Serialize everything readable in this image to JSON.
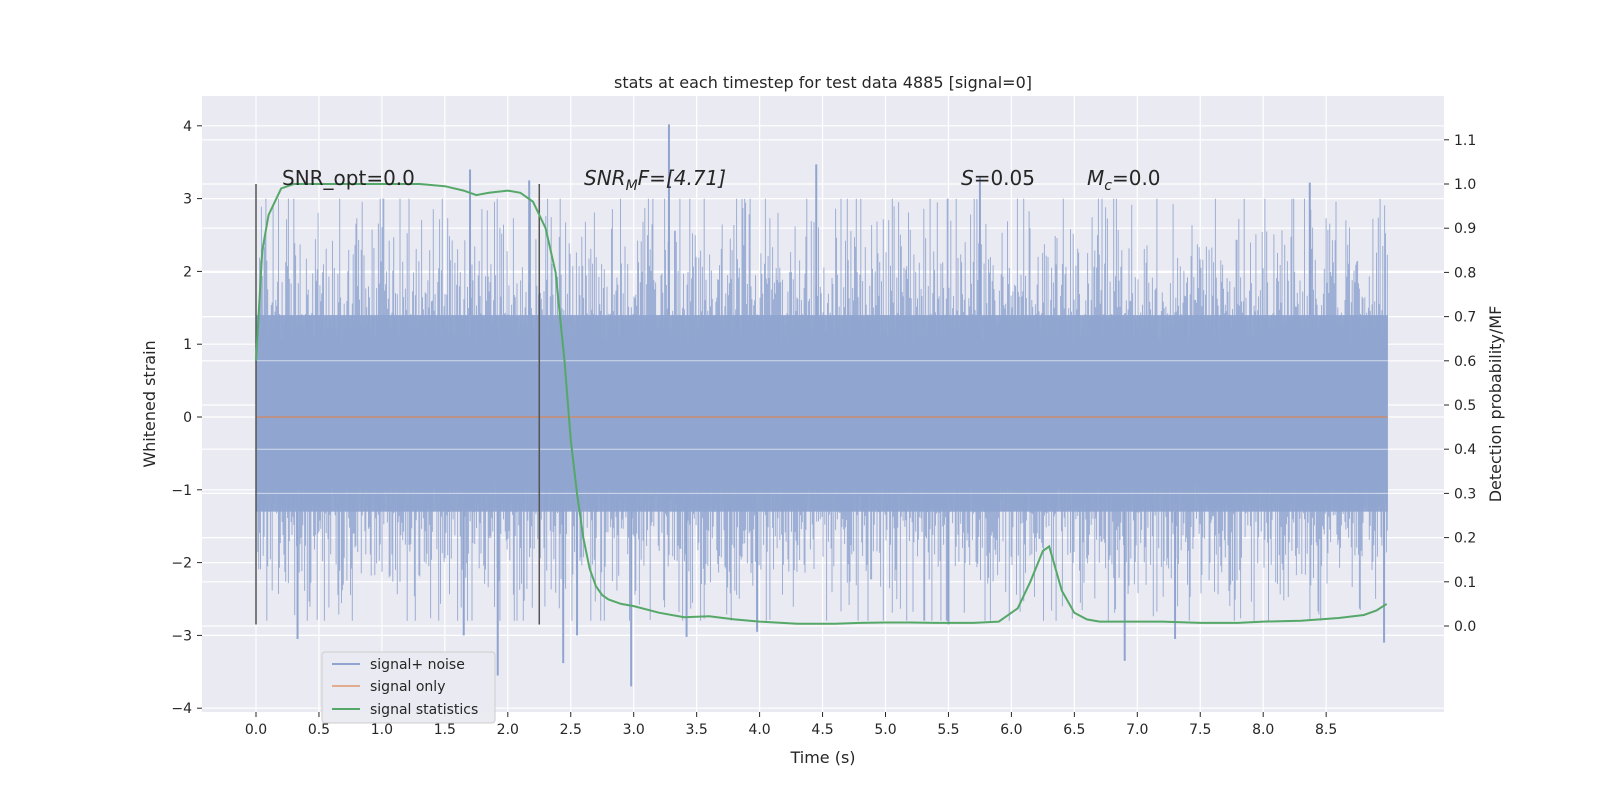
{
  "chart_data": {
    "type": "line",
    "title": "stats at each timestep for test data 4885 [signal=0]",
    "xlabel": "Time (s)",
    "ylabel": "Whitened strain",
    "y2label": "Detection probability/MF",
    "xlim": [
      -0.44,
      9.4
    ],
    "ylim": [
      -4.1,
      4.4
    ],
    "y2lim": [
      -0.2,
      1.2
    ],
    "x_ticks": [
      "0.0",
      "0.5",
      "1.0",
      "1.5",
      "2.0",
      "2.5",
      "3.0",
      "3.5",
      "4.0",
      "4.5",
      "5.0",
      "5.5",
      "6.0",
      "6.5",
      "7.0",
      "7.5",
      "8.0",
      "8.5"
    ],
    "y_ticks": [
      "4",
      "3",
      "2",
      "1",
      "0",
      "−1",
      "−2",
      "−3",
      "−4"
    ],
    "y2_ticks": [
      "1.1",
      "1.0",
      "0.9",
      "0.8",
      "0.7",
      "0.6",
      "0.5",
      "0.4",
      "0.3",
      "0.2",
      "0.1",
      "0.0"
    ],
    "grid": true,
    "legend_position": "lower-left",
    "annotations": {
      "snr_opt": "SNR_opt=0.0",
      "snr_mf_main": "SNR",
      "snr_mf_sub": "M",
      "snr_mf_rest": "F=[4.71]",
      "s_var": "S",
      "s_val": "=0.05",
      "mc_var": "M",
      "mc_sub": "c",
      "mc_val": "=0.0"
    },
    "vertical_markers": {
      "x": [
        0.0,
        2.25
      ],
      "y_range": [
        -2.85,
        3.2
      ]
    },
    "series": [
      {
        "name": "signal+ noise",
        "color": "#8fa4cf",
        "noise_band": {
          "x_range": [
            0.0,
            8.99
          ],
          "core_low": -1.3,
          "core_high": 1.4,
          "typical_peak": 2.6,
          "min_value": -3.7,
          "max_value": 4.02
        },
        "spikes": [
          [
            3.28,
            4.02
          ],
          [
            1.7,
            3.4
          ],
          [
            4.45,
            3.47
          ],
          [
            8.37,
            3.22
          ],
          [
            2.17,
            3.25
          ],
          [
            5.75,
            3.3
          ],
          [
            2.98,
            -3.7
          ],
          [
            1.92,
            -3.55
          ],
          [
            2.44,
            -3.38
          ],
          [
            3.42,
            -3.02
          ],
          [
            6.9,
            -3.35
          ],
          [
            0.33,
            -3.05
          ],
          [
            1.65,
            -3.0
          ],
          [
            8.96,
            -3.1
          ],
          [
            3.98,
            -2.95
          ],
          [
            7.3,
            -3.05
          ],
          [
            5.5,
            -2.85
          ],
          [
            2.55,
            -3.0
          ]
        ]
      },
      {
        "name": "signal only",
        "color": "#dd8452",
        "x": [
          0.0,
          8.99
        ],
        "y": [
          0.0,
          0.0
        ]
      },
      {
        "name": "signal statistics",
        "color": "#55a868",
        "axis": "right",
        "x": [
          0.0,
          0.05,
          0.1,
          0.15,
          0.2,
          0.3,
          0.5,
          0.8,
          1.0,
          1.3,
          1.5,
          1.65,
          1.75,
          1.85,
          2.0,
          2.1,
          2.2,
          2.3,
          2.38,
          2.45,
          2.5,
          2.55,
          2.6,
          2.65,
          2.7,
          2.75,
          2.8,
          2.9,
          3.0,
          3.2,
          3.4,
          3.6,
          3.8,
          4.0,
          4.3,
          4.6,
          4.8,
          5.0,
          5.2,
          5.4,
          5.7,
          5.9,
          6.05,
          6.15,
          6.25,
          6.3,
          6.35,
          6.4,
          6.5,
          6.6,
          6.7,
          6.9,
          7.2,
          7.5,
          7.8,
          8.0,
          8.3,
          8.6,
          8.8,
          8.9,
          8.98
        ],
        "y": [
          0.6,
          0.85,
          0.93,
          0.96,
          0.99,
          1.0,
          1.0,
          1.0,
          1.0,
          1.0,
          0.995,
          0.985,
          0.975,
          0.98,
          0.985,
          0.98,
          0.96,
          0.9,
          0.8,
          0.6,
          0.42,
          0.3,
          0.2,
          0.13,
          0.09,
          0.07,
          0.06,
          0.05,
          0.045,
          0.03,
          0.02,
          0.022,
          0.015,
          0.01,
          0.005,
          0.005,
          0.007,
          0.008,
          0.008,
          0.007,
          0.007,
          0.01,
          0.04,
          0.1,
          0.17,
          0.18,
          0.13,
          0.08,
          0.03,
          0.015,
          0.01,
          0.01,
          0.01,
          0.007,
          0.007,
          0.01,
          0.012,
          0.018,
          0.025,
          0.035,
          0.05
        ]
      }
    ]
  }
}
